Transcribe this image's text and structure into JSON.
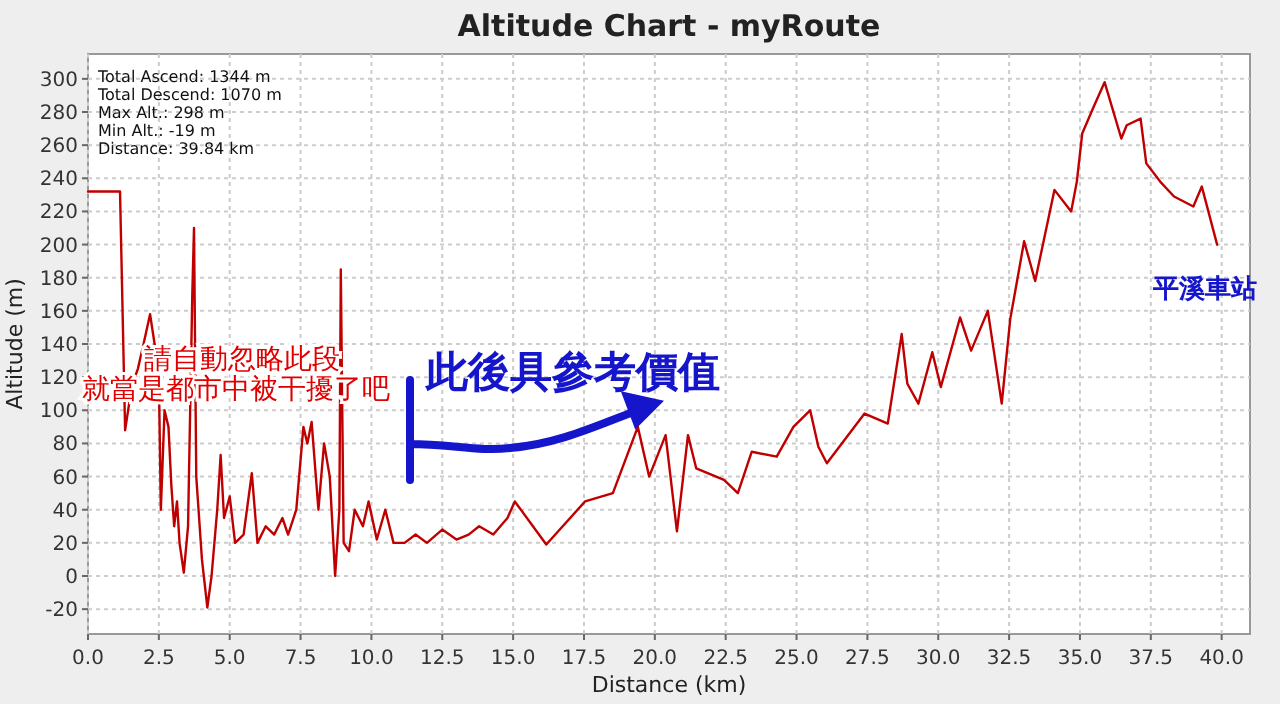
{
  "chart_data": {
    "type": "line",
    "title": "Altitude Chart - myRoute",
    "xlabel": "Distance (km)",
    "ylabel": "Altitude (m)",
    "xlim": [
      0,
      41
    ],
    "xticks": [
      {
        "value": 0,
        "label": "0.0"
      },
      {
        "value": 2.5,
        "label": "2.5"
      },
      {
        "value": 5,
        "label": "5.0"
      },
      {
        "value": 7.5,
        "label": "7.5"
      },
      {
        "value": 10,
        "label": "10.0"
      },
      {
        "value": 12.5,
        "label": "12.5"
      },
      {
        "value": 15,
        "label": "15.0"
      },
      {
        "value": 17.5,
        "label": "17.5"
      },
      {
        "value": 20,
        "label": "20.0"
      },
      {
        "value": 22.5,
        "label": "22.5"
      },
      {
        "value": 25,
        "label": "25.0"
      },
      {
        "value": 27.5,
        "label": "27.5"
      },
      {
        "value": 30,
        "label": "30.0"
      },
      {
        "value": 32.5,
        "label": "32.5"
      },
      {
        "value": 35,
        "label": "35.0"
      },
      {
        "value": 37.5,
        "label": "37.5"
      },
      {
        "value": 40,
        "label": "40.0"
      }
    ],
    "ylim": [
      -35,
      315
    ],
    "yticks": [
      -20,
      0,
      20,
      40,
      60,
      80,
      100,
      120,
      140,
      160,
      180,
      200,
      220,
      240,
      260,
      280,
      300
    ],
    "grid": true,
    "marker": "none",
    "line_style": "solid",
    "x": [
      0,
      1.13,
      1.31,
      1.55,
      1.76,
      1.96,
      2.19,
      2.35,
      2.5,
      2.57,
      2.7,
      2.84,
      2.94,
      3.04,
      3.14,
      3.23,
      3.38,
      3.53,
      3.68,
      3.74,
      3.82,
      4.02,
      4.21,
      4.36,
      4.56,
      4.68,
      4.8,
      5.0,
      5.19,
      5.49,
      5.78,
      5.98,
      6.27,
      6.57,
      6.86,
      7.06,
      7.35,
      7.6,
      7.74,
      7.89,
      8.13,
      8.33,
      8.53,
      8.72,
      8.87,
      8.92,
      9.02,
      9.21,
      9.41,
      9.7,
      9.9,
      10.19,
      10.49,
      10.78,
      11.17,
      11.56,
      11.96,
      12.5,
      13.0,
      13.43,
      13.8,
      14.3,
      14.8,
      15.06,
      16.17,
      17.54,
      18.52,
      19.4,
      19.8,
      20.38,
      20.78,
      21.17,
      21.46,
      22.44,
      22.93,
      23.42,
      24.3,
      24.89,
      25.48,
      25.77,
      26.07,
      27.4,
      28.22,
      28.71,
      28.91,
      29.3,
      29.79,
      30.09,
      30.77,
      31.16,
      31.75,
      32.24,
      32.54,
      33.03,
      33.42,
      34.1,
      34.69,
      34.89,
      35.08,
      35.48,
      35.87,
      36.46,
      36.65,
      37.14,
      37.34,
      37.83,
      38.32,
      39.0,
      39.3,
      39.84
    ],
    "series": [
      {
        "color": "#c00000",
        "values": [
          232,
          232,
          88,
          115,
          125,
          140,
          158,
          140,
          120,
          40,
          100,
          90,
          55,
          30,
          45,
          20,
          2,
          30,
          170,
          210,
          60,
          10,
          -19,
          0,
          40,
          73,
          35,
          48,
          20,
          25,
          62,
          20,
          30,
          25,
          35,
          25,
          40,
          90,
          80,
          93,
          40,
          80,
          60,
          0,
          40,
          185,
          20,
          15,
          40,
          30,
          45,
          22,
          40,
          20,
          20,
          25,
          20,
          28,
          22,
          25,
          30,
          25,
          35,
          45,
          19,
          45,
          50,
          90,
          60,
          85,
          27,
          85,
          65,
          58,
          50,
          75,
          72,
          90,
          100,
          78,
          68,
          98,
          92,
          146,
          116,
          104,
          135,
          114,
          156,
          136,
          160,
          104,
          155,
          202,
          178,
          233,
          220,
          238,
          267,
          283,
          298,
          264,
          272,
          276,
          249,
          238,
          229,
          223,
          235,
          200
        ]
      }
    ],
    "annotations": [
      "Total Ascend: 1344 m",
      "Total Descend: 1070 m",
      "Max Alt.: 298 m",
      "Min Alt.: -19 m",
      "Distance: 39.84 km",
      "請自動忽略此段",
      "就當是都市中被干擾了吧",
      "此後具參考價值",
      {
        "text": "平溪車站",
        "x": 39.84,
        "y": 200
      }
    ]
  }
}
